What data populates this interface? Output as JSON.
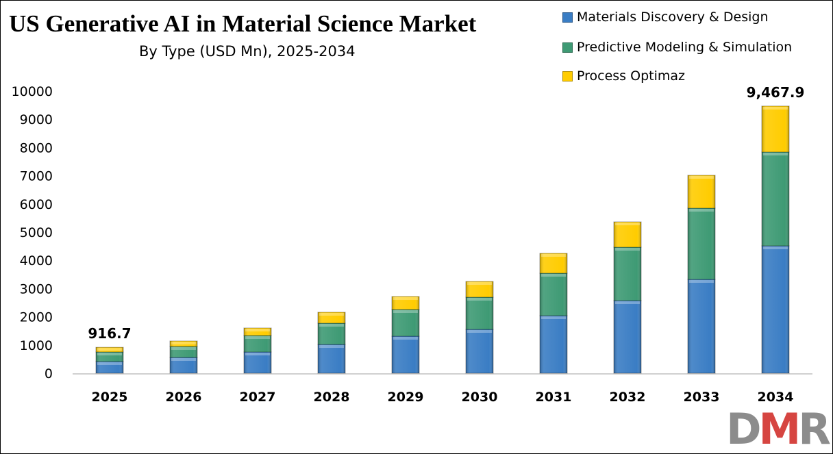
{
  "chart_data": {
    "type": "bar",
    "stacked": true,
    "title": "US Generative AI in Material Science Market",
    "subtitle": "By Type (USD Mn), 2025-2034",
    "categories": [
      "2025",
      "2026",
      "2027",
      "2028",
      "2029",
      "2030",
      "2031",
      "2032",
      "2033",
      "2034"
    ],
    "series": [
      {
        "name": "Materials Discovery & Design",
        "color": "#3a7dc4",
        "values": [
          413,
          558,
          752,
          1019,
          1311,
          1553,
          2039,
          2573,
          3325,
          4515
        ]
      },
      {
        "name": "Predictive Modeling & Simulation",
        "color": "#3e9a74",
        "values": [
          339,
          389,
          583,
          753,
          946,
          1141,
          1505,
          1893,
          2525,
          3325
        ]
      },
      {
        "name": "Process Optimaz",
        "color": "#ffcc00",
        "values": [
          165,
          194,
          267,
          388,
          461,
          558,
          704,
          898,
          1165,
          1628
        ]
      }
    ],
    "yticks": [
      "0",
      "1000",
      "2000",
      "3000",
      "4000",
      "5000",
      "6000",
      "7000",
      "8000",
      "9000",
      "10000"
    ],
    "ylim": [
      0,
      10000
    ],
    "grid": false,
    "legend_position": "top-right",
    "annotations": [
      {
        "category": "2025",
        "text": "916.7"
      },
      {
        "category": "2034",
        "text": "9,467.9"
      }
    ]
  },
  "logo_text": "DMR"
}
